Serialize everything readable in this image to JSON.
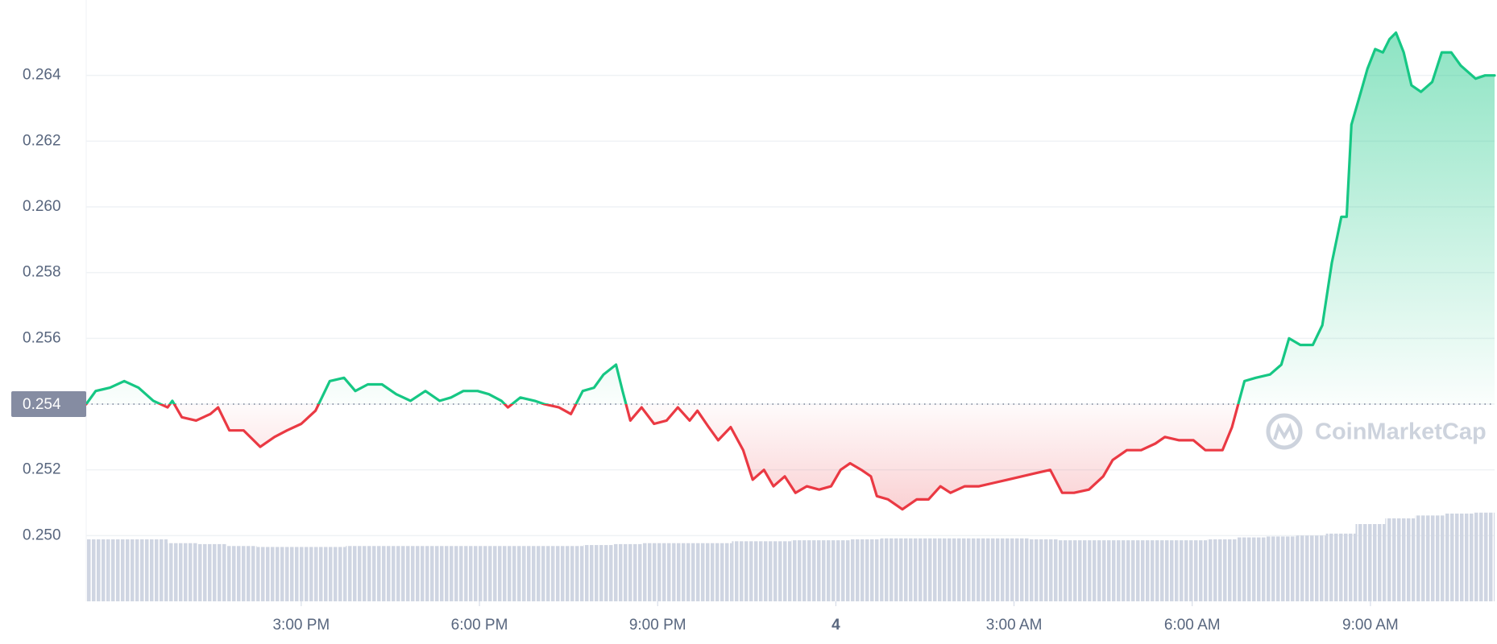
{
  "chart_data": {
    "type": "line",
    "baseline": 0.254,
    "color_up": "#16c784",
    "color_down": "#ea3943",
    "grid": true,
    "watermark": "CoinMarketCap",
    "xlim": [
      11.38,
      35.09
    ],
    "xticks": [
      {
        "value": 15,
        "label": "3:00 PM"
      },
      {
        "value": 18,
        "label": "6:00 PM"
      },
      {
        "value": 21,
        "label": "9:00 PM"
      },
      {
        "value": 24,
        "label": "4",
        "bold": true
      },
      {
        "value": 27,
        "label": "3:00 AM"
      },
      {
        "value": 30,
        "label": "6:00 AM"
      },
      {
        "value": 33,
        "label": "9:00 AM"
      }
    ],
    "ylim": [
      0.248,
      0.266
    ],
    "yticks": [
      {
        "value": 0.25,
        "label": "0.250"
      },
      0.252,
      0.254,
      0.256,
      0.258,
      {
        "value": 0.26,
        "label": "0.260"
      },
      0.262,
      0.264
    ],
    "x": [
      11.38,
      11.54,
      11.78,
      12.02,
      12.26,
      12.51,
      12.75,
      12.83,
      12.99,
      13.23,
      13.47,
      13.6,
      13.79,
      14.03,
      14.31,
      14.55,
      14.76,
      15.0,
      15.24,
      15.48,
      15.72,
      15.91,
      16.12,
      16.36,
      16.6,
      16.84,
      17.09,
      17.33,
      17.52,
      17.73,
      17.97,
      18.16,
      18.37,
      18.48,
      18.69,
      18.93,
      19.09,
      19.34,
      19.54,
      19.74,
      19.93,
      20.09,
      20.3,
      20.41,
      20.54,
      20.73,
      20.94,
      21.15,
      21.34,
      21.54,
      21.67,
      21.86,
      22.02,
      22.23,
      22.44,
      22.6,
      22.79,
      22.95,
      23.14,
      23.32,
      23.51,
      23.72,
      23.92,
      24.08,
      24.24,
      24.43,
      24.59,
      24.69,
      24.88,
      25.12,
      25.36,
      25.56,
      25.76,
      25.93,
      26.17,
      26.41,
      26.65,
      26.89,
      27.13,
      27.37,
      27.61,
      27.81,
      28.01,
      28.26,
      28.5,
      28.66,
      28.9,
      29.14,
      29.38,
      29.54,
      29.78,
      30.02,
      30.22,
      30.51,
      30.67,
      30.88,
      31.07,
      31.31,
      31.5,
      31.63,
      31.82,
      32.03,
      32.19,
      32.35,
      32.51,
      32.6,
      32.68,
      32.84,
      32.95,
      33.08,
      33.21,
      33.32,
      33.43,
      33.56,
      33.69,
      33.85,
      34.04,
      34.2,
      34.36,
      34.52,
      34.77,
      34.93,
      35.09
    ],
    "values": [
      0.254,
      0.2544,
      0.2545,
      0.2547,
      0.2545,
      0.2541,
      0.2539,
      0.2541,
      0.2536,
      0.2535,
      0.2537,
      0.2539,
      0.2532,
      0.2532,
      0.2527,
      0.253,
      0.2532,
      0.2534,
      0.2538,
      0.2547,
      0.2548,
      0.2544,
      0.2546,
      0.2546,
      0.2543,
      0.2541,
      0.2544,
      0.2541,
      0.2542,
      0.2544,
      0.2544,
      0.2543,
      0.2541,
      0.2539,
      0.2542,
      0.2541,
      0.254,
      0.2539,
      0.2537,
      0.2544,
      0.2545,
      0.2549,
      0.2552,
      0.2544,
      0.2535,
      0.2539,
      0.2534,
      0.2535,
      0.2539,
      0.2535,
      0.2538,
      0.2533,
      0.2529,
      0.2533,
      0.2526,
      0.2517,
      0.252,
      0.2515,
      0.2518,
      0.2513,
      0.2515,
      0.2514,
      0.2515,
      0.252,
      0.2522,
      0.252,
      0.2518,
      0.2512,
      0.2511,
      0.2508,
      0.2511,
      0.2511,
      0.2515,
      0.2513,
      0.2515,
      0.2515,
      0.2516,
      0.2517,
      0.2518,
      0.2519,
      0.252,
      0.2513,
      0.2513,
      0.2514,
      0.2518,
      0.2523,
      0.2526,
      0.2526,
      0.2528,
      0.253,
      0.2529,
      0.2529,
      0.2526,
      0.2526,
      0.2533,
      0.2547,
      0.2548,
      0.2549,
      0.2552,
      0.256,
      0.2558,
      0.2558,
      0.2564,
      0.2583,
      0.2597,
      0.2597,
      0.2625,
      0.2635,
      0.2642,
      0.2648,
      0.2647,
      0.2651,
      0.2653,
      0.2647,
      0.2637,
      0.2635,
      0.2638,
      0.2647,
      0.2647,
      0.2643,
      0.2639,
      0.264,
      0.264
    ],
    "volume": {
      "color": "#cfd5e2",
      "ylim": [
        0,
        100
      ],
      "x": [
        11.5,
        12,
        12.5,
        13,
        13.5,
        14,
        14.5,
        15,
        15.5,
        16,
        16.5,
        17,
        17.5,
        18,
        18.5,
        19,
        19.5,
        20,
        20.5,
        21,
        21.5,
        22,
        22.5,
        23,
        23.5,
        24,
        24.5,
        25,
        25.5,
        26,
        26.5,
        27,
        27.5,
        28,
        28.5,
        29,
        29.5,
        30,
        30.5,
        31,
        31.5,
        32,
        32.5,
        33,
        33.5,
        34,
        34.5,
        35
      ],
      "values": [
        65,
        65,
        65,
        61,
        60,
        58,
        57,
        57,
        57,
        58,
        58,
        58,
        58,
        58,
        58,
        58,
        58,
        59,
        60,
        61,
        61,
        61,
        63,
        63,
        64,
        64,
        65,
        66,
        66,
        66,
        66,
        66,
        65,
        64,
        64,
        64,
        64,
        64,
        65,
        67,
        68,
        69,
        71,
        81,
        87,
        90,
        92,
        93
      ]
    }
  }
}
